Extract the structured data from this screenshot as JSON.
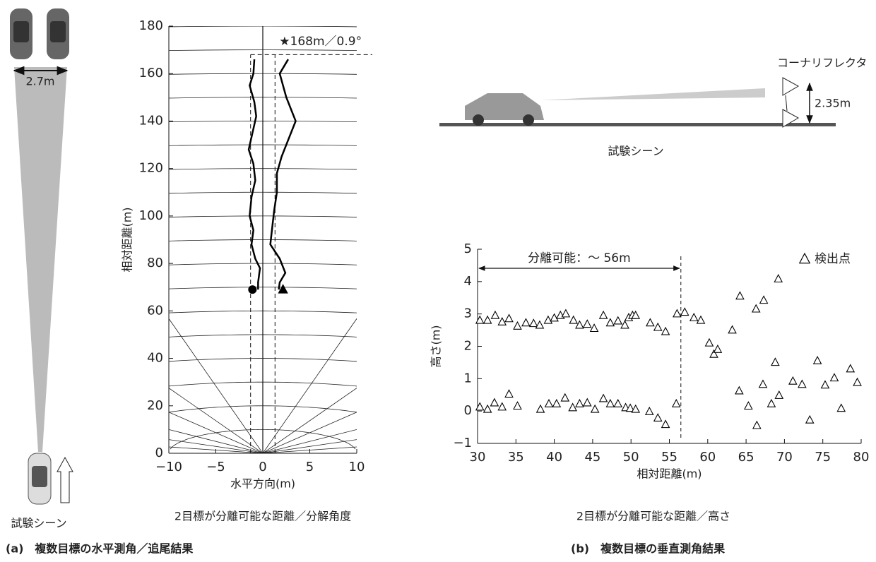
{
  "chart_data": [
    {
      "type": "line",
      "xlabel": "水平方向(m)",
      "ylabel": "相対距離(m)",
      "caption": "2目標が分離可能な距離／分解角度",
      "panel": "(a)　複数目標の水平測角／追尾結果",
      "annotation": "★168m／0.9°",
      "xlim": [
        -10,
        10
      ],
      "ylim": [
        0,
        180
      ],
      "xticks": [
        {
          "value": -10,
          "label": "−10"
        },
        {
          "value": -5,
          "label": "−5"
        },
        0,
        5,
        10
      ],
      "yticks": [
        0,
        20,
        40,
        60,
        80,
        100,
        120,
        140,
        160,
        180
      ],
      "hline": 168,
      "vlines": [
        -1.3,
        1.3
      ],
      "series": [
        {
          "color": "#000000",
          "marker": "circle",
          "x": [
            -0.9,
            -1.0,
            -1.4,
            -0.9,
            -0.7,
            -1.1,
            -1.5,
            -1.0,
            -0.8,
            -1.2,
            -1.4,
            -1.0,
            -1.2,
            -0.8,
            -0.3,
            -0.5,
            -0.5
          ],
          "values": [
            166,
            160,
            155,
            148,
            142,
            135,
            128,
            122,
            115,
            108,
            100,
            94,
            88,
            82,
            78,
            72,
            69
          ]
        },
        {
          "color": "#000000",
          "marker": "triangle",
          "x": [
            2.7,
            1.8,
            2.5,
            3.5,
            2.7,
            2.0,
            1.5,
            1.5,
            1.2,
            1.0,
            0.8,
            1.8,
            2.4,
            1.8,
            1.7
          ],
          "values": [
            166,
            160,
            150,
            140,
            132,
            125,
            118,
            110,
            102,
            95,
            88,
            82,
            76,
            72,
            69
          ]
        }
      ]
    },
    {
      "type": "scatter",
      "xlabel": "相対距離(m)",
      "ylabel": "高さ(m)",
      "caption": "2目標が分離可能な距離／高さ",
      "panel": "(b)　複数目標の垂直測角結果",
      "annotation": "分離可能：～ 56m",
      "xlim": [
        30,
        80
      ],
      "ylim": [
        -1,
        5
      ],
      "xticks": [
        30,
        35,
        40,
        45,
        50,
        55,
        60,
        65,
        70,
        75,
        80
      ],
      "yticks": [
        {
          "value": -1,
          "label": "−1"
        },
        0,
        1,
        2,
        3,
        4,
        5
      ],
      "vline": 56.5,
      "legend": "top-right",
      "series": [
        {
          "name": "検出点",
          "color": "#000000",
          "x": [
            30.3,
            31.3,
            32.3,
            33.2,
            34.1,
            35.2,
            36.3,
            37.3,
            38.1,
            39.2,
            40,
            40.8,
            41.5,
            42.5,
            43.3,
            44.3,
            45.2,
            46.4,
            47.3,
            48.3,
            49.2,
            49.7,
            50.2,
            50.6,
            52.5,
            53.5,
            54.5,
            56,
            57,
            58.2,
            59.1,
            60.2,
            60.8,
            61.3,
            63.2,
            64.2,
            66.3,
            67.3,
            69.2,
            30.3,
            31.3,
            32.2,
            33.2,
            34.1,
            35.2,
            38.2,
            39.3,
            40.3,
            41.4,
            42.4,
            43.3,
            44.3,
            45.3,
            46.4,
            47.3,
            48.3,
            49.3,
            49.9,
            50.6,
            52.4,
            53.5,
            54.5,
            55.9,
            64.1,
            65.3,
            66.4,
            67.2,
            68.3,
            68.8,
            69.3,
            71.1,
            72.3,
            73.3,
            74.3,
            75.3,
            76.5,
            77.4,
            78.6,
            79.5
          ],
          "values": [
            2.8,
            2.8,
            2.95,
            2.75,
            2.85,
            2.62,
            2.72,
            2.7,
            2.65,
            2.8,
            2.87,
            2.95,
            3.0,
            2.8,
            2.65,
            2.68,
            2.55,
            2.95,
            2.72,
            2.78,
            2.65,
            2.88,
            2.95,
            2.95,
            2.72,
            2.58,
            2.45,
            3.0,
            3.05,
            2.88,
            2.8,
            2.1,
            1.75,
            1.9,
            2.5,
            3.55,
            3.15,
            3.42,
            4.08,
            0.12,
            0.05,
            0.25,
            0.12,
            0.52,
            0.15,
            0.05,
            0.22,
            0.22,
            0.4,
            0.1,
            0.22,
            0.25,
            0.05,
            0.38,
            0.22,
            0.22,
            0.1,
            0.08,
            0.05,
            -0.02,
            -0.22,
            -0.42,
            0.22,
            0.62,
            0.15,
            -0.45,
            0.82,
            0.22,
            1.5,
            0.48,
            0.92,
            0.82,
            -0.28,
            1.55,
            0.8,
            1.02,
            0.08,
            1.3,
            0.88
          ]
        }
      ]
    }
  ],
  "scene_a": {
    "width_label": "2.7m",
    "caption": "試験シーン"
  },
  "scene_b": {
    "reflector_label": "コーナリフレクタ",
    "height_label": "2.35m",
    "caption": "試験シーン"
  }
}
